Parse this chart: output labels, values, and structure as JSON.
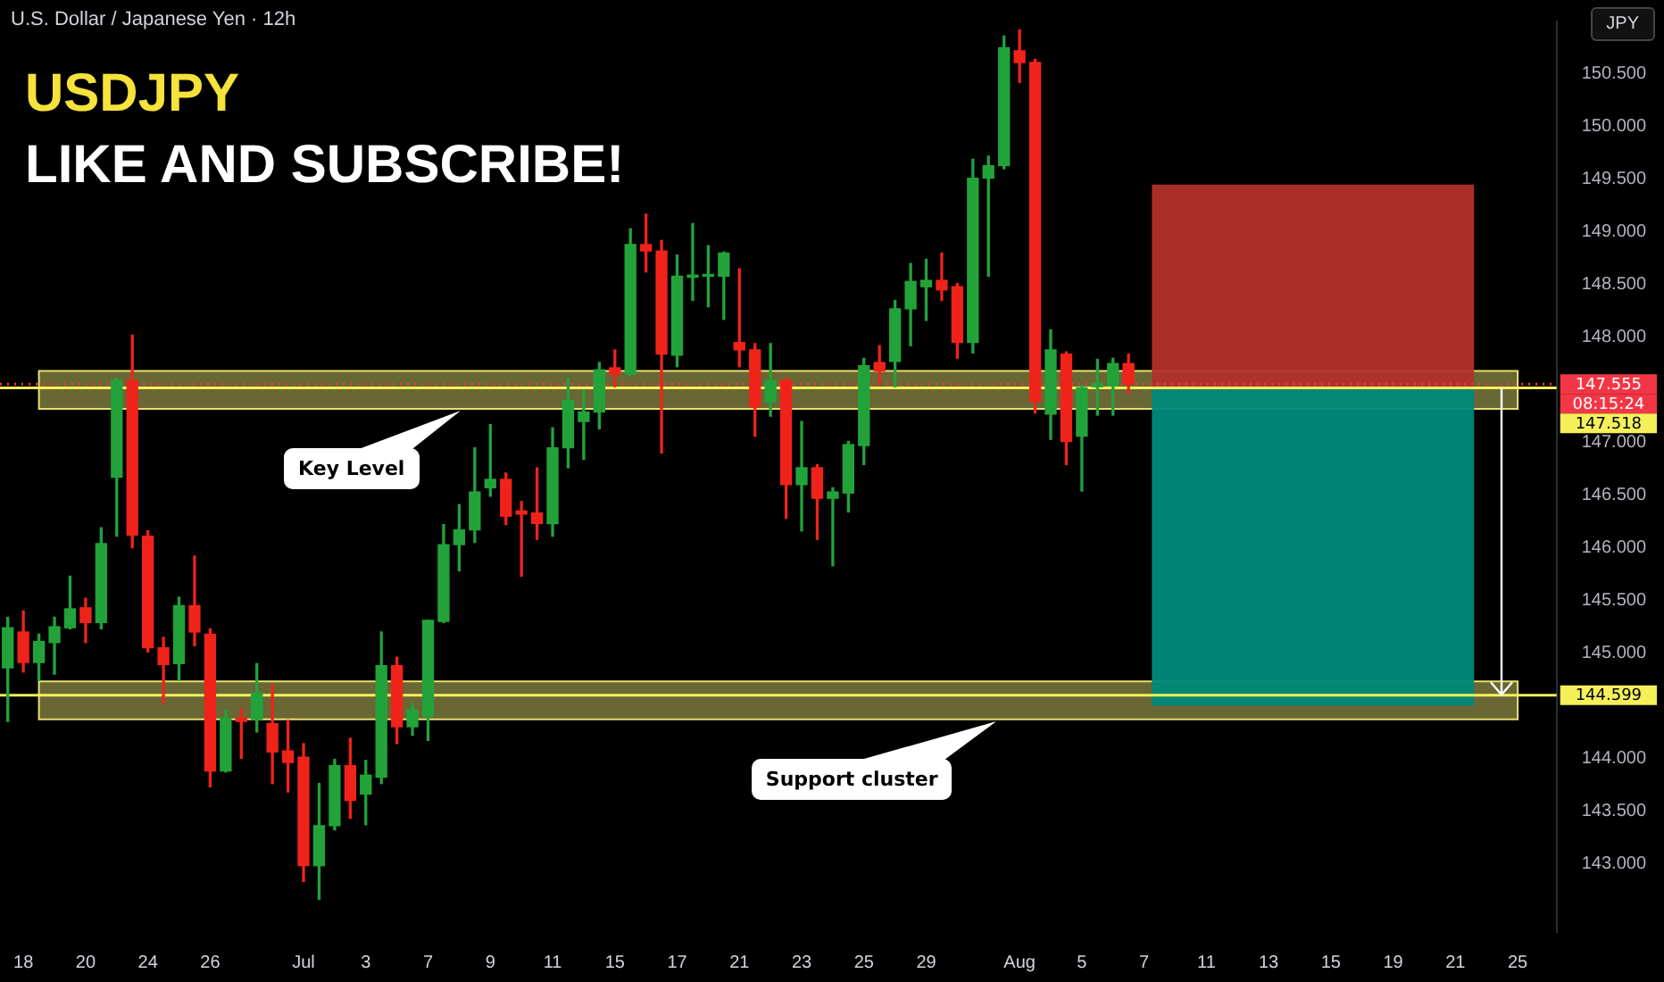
{
  "chart_data": {
    "type": "candlestick",
    "title": "USDJPY",
    "subtitle": "LIKE AND SUBSCRIBE!",
    "categories": [
      null,
      "18",
      null,
      null,
      null,
      "20",
      null,
      null,
      null,
      "24",
      null,
      null,
      null,
      "26",
      null,
      null,
      null,
      null,
      null,
      "Jul",
      null,
      null,
      null,
      "3",
      null,
      null,
      null,
      "7",
      null,
      null,
      null,
      "9",
      null,
      null,
      null,
      "11",
      null,
      null,
      null,
      "15",
      null,
      null,
      null,
      "17",
      null,
      null,
      null,
      "21",
      null,
      null,
      null,
      "23",
      null,
      null,
      null,
      "25",
      null,
      null,
      null,
      "29",
      null,
      null,
      null,
      null,
      null,
      "Aug",
      null,
      null,
      null,
      "5",
      null,
      null,
      null,
      "7",
      null,
      null,
      null,
      "11",
      null,
      null,
      null,
      "13",
      null,
      null,
      null,
      "15",
      null,
      null,
      null,
      "19",
      null,
      null,
      null,
      "21",
      null,
      null,
      null,
      "25",
      null,
      null
    ],
    "ohlc": [
      [
        144.86,
        145.34,
        144.35,
        145.24
      ],
      [
        145.2,
        145.4,
        144.82,
        144.91
      ],
      [
        144.91,
        145.18,
        144.74,
        145.11
      ],
      [
        145.1,
        145.34,
        144.8,
        145.25
      ],
      [
        145.24,
        145.73,
        145.23,
        145.42
      ],
      [
        145.43,
        145.52,
        145.1,
        145.29
      ],
      [
        145.29,
        146.19,
        145.23,
        146.04
      ],
      [
        146.67,
        147.61,
        146.11,
        147.59
      ],
      [
        147.59,
        148.02,
        146.0,
        146.12
      ],
      [
        146.11,
        146.16,
        145.01,
        145.05
      ],
      [
        145.05,
        145.15,
        144.53,
        144.89
      ],
      [
        144.9,
        145.53,
        144.74,
        145.45
      ],
      [
        145.45,
        145.92,
        145.07,
        145.2
      ],
      [
        145.18,
        145.23,
        143.73,
        143.88
      ],
      [
        143.88,
        144.46,
        143.87,
        144.38
      ],
      [
        144.38,
        144.47,
        144.0,
        144.35
      ],
      [
        144.37,
        144.9,
        144.25,
        144.62
      ],
      [
        144.33,
        144.7,
        143.76,
        144.06
      ],
      [
        144.07,
        144.36,
        143.68,
        143.96
      ],
      [
        144.01,
        144.14,
        142.83,
        142.98
      ],
      [
        142.98,
        143.76,
        142.66,
        143.36
      ],
      [
        143.36,
        143.99,
        143.32,
        143.93
      ],
      [
        143.93,
        144.19,
        143.43,
        143.6
      ],
      [
        143.66,
        143.98,
        143.37,
        143.84
      ],
      [
        143.82,
        145.2,
        143.76,
        144.88
      ],
      [
        144.88,
        144.96,
        144.14,
        144.3
      ],
      [
        144.3,
        144.52,
        144.22,
        144.46
      ],
      [
        144.4,
        145.31,
        144.17,
        145.31
      ],
      [
        145.3,
        146.22,
        145.29,
        146.03
      ],
      [
        146.03,
        146.41,
        145.78,
        146.17
      ],
      [
        146.17,
        146.95,
        146.05,
        146.53
      ],
      [
        146.57,
        147.17,
        146.49,
        146.65
      ],
      [
        146.65,
        146.71,
        146.22,
        146.3
      ],
      [
        146.35,
        146.44,
        145.73,
        146.32
      ],
      [
        146.33,
        146.76,
        146.08,
        146.23
      ],
      [
        146.23,
        147.14,
        146.11,
        146.95
      ],
      [
        146.95,
        147.61,
        146.76,
        147.4
      ],
      [
        147.2,
        147.5,
        146.84,
        147.29
      ],
      [
        147.29,
        147.76,
        147.13,
        147.69
      ],
      [
        147.71,
        147.88,
        147.53,
        147.65
      ],
      [
        147.65,
        149.03,
        147.64,
        148.88
      ],
      [
        148.88,
        149.17,
        148.62,
        148.82
      ],
      [
        148.82,
        148.92,
        146.9,
        147.84
      ],
      [
        147.83,
        148.78,
        147.72,
        148.58
      ],
      [
        148.57,
        149.08,
        148.35,
        148.59
      ],
      [
        148.58,
        148.87,
        148.29,
        148.59
      ],
      [
        148.58,
        148.81,
        148.17,
        148.8
      ],
      [
        147.95,
        148.65,
        147.72,
        147.88
      ],
      [
        147.88,
        147.94,
        147.06,
        147.34
      ],
      [
        147.39,
        147.94,
        147.25,
        147.59
      ],
      [
        147.59,
        147.61,
        146.28,
        146.6
      ],
      [
        146.6,
        147.2,
        146.16,
        146.76
      ],
      [
        146.76,
        146.79,
        146.08,
        146.47
      ],
      [
        146.47,
        146.57,
        145.83,
        146.53
      ],
      [
        146.52,
        147.01,
        146.34,
        146.98
      ],
      [
        146.97,
        147.8,
        146.79,
        147.73
      ],
      [
        147.76,
        147.92,
        147.55,
        147.68
      ],
      [
        147.77,
        148.35,
        147.53,
        148.27
      ],
      [
        148.27,
        148.7,
        147.92,
        148.53
      ],
      [
        148.48,
        148.74,
        148.16,
        148.54
      ],
      [
        148.54,
        148.8,
        148.35,
        148.45
      ],
      [
        148.48,
        148.51,
        147.8,
        147.95
      ],
      [
        147.95,
        149.69,
        147.85,
        149.51
      ],
      [
        149.51,
        149.72,
        148.58,
        149.63
      ],
      [
        149.63,
        150.86,
        149.6,
        150.75
      ],
      [
        150.72,
        150.92,
        150.42,
        150.61
      ],
      [
        150.61,
        150.64,
        147.28,
        147.39
      ],
      [
        147.27,
        148.07,
        147.03,
        147.88
      ],
      [
        147.84,
        147.86,
        146.79,
        147.01
      ],
      [
        147.06,
        147.54,
        146.54,
        147.52
      ],
      [
        147.53,
        147.79,
        147.26,
        147.56
      ],
      [
        147.54,
        147.8,
        147.26,
        147.75
      ],
      [
        147.75,
        147.84,
        147.47,
        147.555
      ],
      null,
      null,
      null,
      null,
      null,
      null,
      null,
      null,
      null,
      null,
      null,
      null,
      null,
      null,
      null,
      null,
      null,
      null,
      null,
      null,
      null,
      null,
      null,
      null,
      null,
      null,
      null
    ],
    "ylim": [
      142.35,
      151.0
    ],
    "yticks": [
      {
        "value": 143,
        "label": "143.000"
      },
      {
        "value": 143.5,
        "label": "143.500"
      },
      {
        "value": 144,
        "label": "144.000"
      },
      {
        "value": 145,
        "label": "145.000"
      },
      {
        "value": 145.5,
        "label": "145.500"
      },
      {
        "value": 146,
        "label": "146.000"
      },
      {
        "value": 146.5,
        "label": "146.500"
      },
      {
        "value": 147,
        "label": "147.000"
      },
      {
        "value": 148,
        "label": "148.000"
      },
      {
        "value": 148.5,
        "label": "148.500"
      },
      {
        "value": 149,
        "label": "149.000"
      },
      {
        "value": 149.5,
        "label": "149.500"
      },
      {
        "value": 150,
        "label": "150.000"
      },
      {
        "value": 150.5,
        "label": "150.500"
      }
    ],
    "bands": [
      {
        "axis": "y",
        "from": 147.32,
        "to": 147.68,
        "label": "Key Level",
        "color": "#8c8a45"
      },
      {
        "axis": "y",
        "from": 144.37,
        "to": 144.73,
        "label": "Support cluster",
        "color": "#8c8a45"
      },
      {
        "axis": "y",
        "from": 147.518,
        "to": 149.45,
        "color": "#b2302a"
      },
      {
        "axis": "y",
        "from": 144.5,
        "to": 147.518,
        "color": "#00897b"
      }
    ],
    "ref_lines": [
      {
        "axis": "y",
        "value": 147.555,
        "label": "147.555",
        "color": "#f23645",
        "line_style": "dotted"
      },
      {
        "axis": "y",
        "value": 147.518,
        "label": "147.518",
        "color": "#f5f05a"
      },
      {
        "axis": "y",
        "value": 144.599,
        "label": "144.599",
        "color": "#f5f05a"
      }
    ],
    "annotations": [
      "08:15:24",
      "U.S. Dollar / Japanese Yen · 12h",
      "JPY"
    ]
  }
}
